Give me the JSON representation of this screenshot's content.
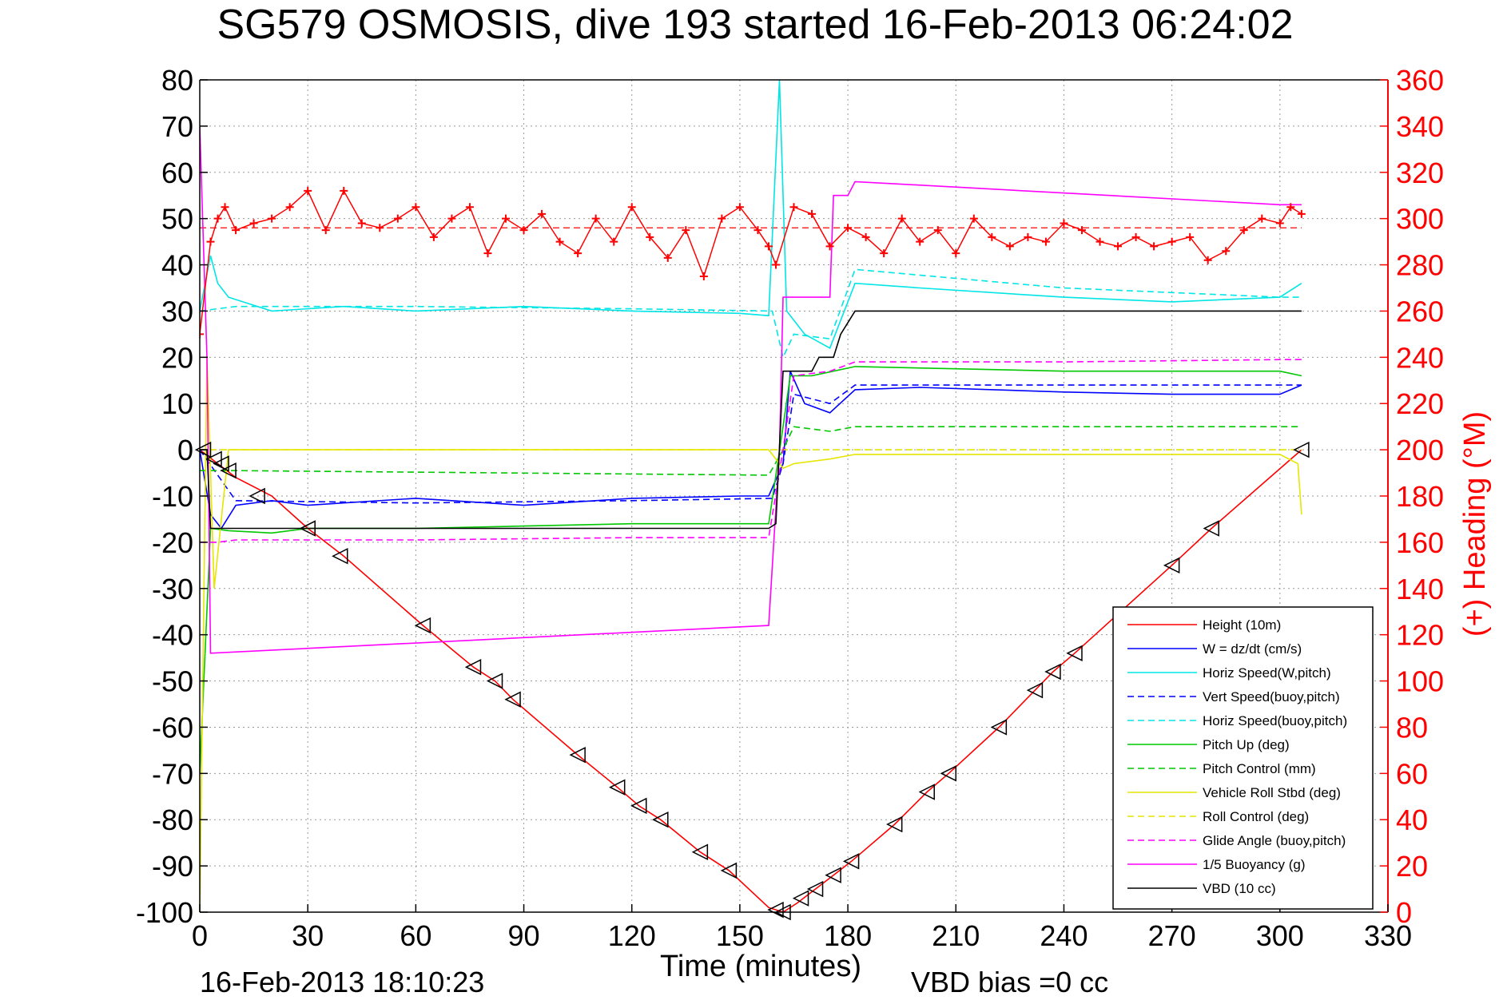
{
  "chart_data": {
    "type": "line",
    "title": "SG579 OSMOSIS, dive 193 started 16-Feb-2013 06:24:02",
    "xlabel": "Time (minutes)",
    "ylabel_right": "(+) Heading (°M)",
    "xlim": [
      0,
      330
    ],
    "ylim": [
      -100,
      80
    ],
    "ylim_right": [
      0,
      360
    ],
    "xticks": [
      0,
      30,
      60,
      90,
      120,
      150,
      180,
      210,
      240,
      270,
      300,
      330
    ],
    "yticks": [
      -100,
      -90,
      -80,
      -70,
      -60,
      -50,
      -40,
      -30,
      -20,
      -10,
      0,
      10,
      20,
      30,
      40,
      50,
      60,
      70,
      80
    ],
    "yticks_right": [
      0,
      20,
      40,
      60,
      80,
      100,
      120,
      140,
      160,
      180,
      200,
      220,
      240,
      260,
      280,
      300,
      320,
      340,
      360
    ],
    "grid": true,
    "legend_position": "bottom-right",
    "footer_left": "16-Feb-2013 18:10:23",
    "footer_right": "VBD bias =0 cc",
    "series": [
      {
        "name": "Height (10m)",
        "color": "#ff0000",
        "style": "solid",
        "x": [
          0,
          5,
          10,
          20,
          30,
          40,
          62,
          76,
          82,
          87,
          105,
          116,
          122,
          128,
          139,
          147,
          158,
          162,
          166,
          171,
          176,
          181,
          193,
          202,
          208,
          222,
          232,
          237,
          243,
          270,
          281,
          306
        ],
        "y": [
          0,
          -3,
          -6,
          -10,
          -17,
          -23,
          -38,
          -47,
          -50,
          -54,
          -66,
          -73,
          -77,
          -80,
          -87,
          -91,
          -99,
          -100,
          -98,
          -95,
          -92,
          -89,
          -81,
          -74,
          -70,
          -60,
          -52,
          -48,
          -44,
          -25,
          -17,
          0
        ]
      },
      {
        "name": "W = dz/dt (cm/s)",
        "color": "#0000ff",
        "style": "solid",
        "x": [
          0,
          3,
          6,
          10,
          20,
          30,
          60,
          90,
          120,
          150,
          158,
          162,
          164,
          168,
          175,
          182,
          200,
          240,
          270,
          300,
          306
        ],
        "y": [
          0,
          -14,
          -17,
          -12,
          -11,
          -12,
          -10.5,
          -12,
          -10.5,
          -10,
          -10,
          -3,
          17,
          10,
          8,
          13,
          13.5,
          12.5,
          12,
          12,
          14
        ]
      },
      {
        "name": "Horiz Speed(W,pitch)",
        "color": "#00e5e5",
        "style": "solid",
        "x": [
          0,
          3,
          5,
          8,
          20,
          40,
          60,
          90,
          120,
          150,
          158,
          161,
          163,
          168,
          175,
          182,
          200,
          240,
          270,
          300,
          306
        ],
        "y": [
          30,
          42,
          36,
          33,
          30,
          31,
          30,
          31,
          30,
          29.5,
          29,
          80,
          30,
          25,
          22,
          36,
          35,
          33,
          32,
          33,
          36
        ]
      },
      {
        "name": "Vert Speed(buoy,pitch)",
        "color": "#0000ff",
        "style": "dashed",
        "x": [
          0,
          10,
          60,
          120,
          159,
          162,
          165,
          175,
          182,
          240,
          300,
          306
        ],
        "y": [
          0,
          -11,
          -11.5,
          -11,
          -10.5,
          -3,
          12,
          10,
          14,
          14,
          14,
          14
        ]
      },
      {
        "name": "Horiz Speed(buoy,pitch)",
        "color": "#00e5e5",
        "style": "dashed",
        "x": [
          0,
          10,
          60,
          120,
          159,
          162,
          165,
          175,
          182,
          240,
          300,
          306
        ],
        "y": [
          30,
          31,
          31,
          30.5,
          30,
          20,
          25,
          24,
          39,
          35,
          33,
          33
        ]
      },
      {
        "name": "Pitch Up (deg)",
        "color": "#00c800",
        "style": "solid",
        "x": [
          0,
          3,
          8,
          20,
          30,
          60,
          90,
          120,
          158,
          162,
          164,
          170,
          176,
          182,
          240,
          300,
          306
        ],
        "y": [
          -70,
          -17,
          -17.5,
          -18,
          -17,
          -17,
          -16.5,
          -16,
          -16,
          5,
          16,
          16,
          17,
          18,
          17,
          17,
          16
        ]
      },
      {
        "name": "Pitch Control (mm)",
        "color": "#00c800",
        "style": "dashed",
        "x": [
          0,
          10,
          158,
          162,
          165,
          175,
          182,
          306
        ],
        "y": [
          -4.5,
          -4.5,
          -5.5,
          0,
          5,
          4,
          5,
          5
        ]
      },
      {
        "name": "Vehicle Roll Stbd (deg)",
        "color": "#e6e600",
        "style": "solid",
        "x": [
          0,
          2,
          4,
          8,
          10,
          15,
          60,
          90,
          120,
          158,
          162,
          165,
          175,
          182,
          240,
          300,
          305,
          306
        ],
        "y": [
          -100,
          20,
          -30,
          0,
          0,
          0,
          0,
          0,
          0,
          0,
          -4,
          -3,
          -2,
          -1,
          -1,
          -1,
          -3,
          -14
        ]
      },
      {
        "name": "Roll Control (deg)",
        "color": "#e6e600",
        "style": "dashed",
        "x": [
          0,
          158,
          162,
          182,
          306
        ],
        "y": [
          0,
          0,
          0,
          0,
          0
        ]
      },
      {
        "name": "Glide Angle (buoy,pitch)",
        "color": "#ff00ff",
        "style": "dashed",
        "x": [
          0,
          5,
          10,
          20,
          60,
          120,
          158,
          162,
          165,
          175,
          182,
          240,
          300,
          306
        ],
        "y": [
          -20,
          -20,
          -19.5,
          -19.5,
          -19.5,
          -19,
          -19,
          0,
          16,
          17,
          19,
          19,
          19.5,
          19.5
        ]
      },
      {
        "name": "1/5 Buoyancy (g)",
        "color": "#ff00ff",
        "style": "solid",
        "x": [
          0,
          2,
          3,
          158,
          161,
          162,
          175,
          176,
          180,
          182,
          300,
          306
        ],
        "y": [
          70,
          20,
          -44,
          -38,
          0,
          33,
          33,
          55,
          55,
          58,
          53,
          53
        ]
      },
      {
        "name": "VBD (10 cc)",
        "color": "#000000",
        "style": "solid",
        "x": [
          0,
          2,
          3,
          158,
          160,
          162,
          170,
          172,
          176,
          178,
          182,
          306
        ],
        "y": [
          0,
          0,
          -17,
          -17,
          -16,
          17,
          17,
          20,
          20,
          25,
          30,
          30
        ]
      },
      {
        "name": "Heading",
        "color": "#ff0000",
        "axis": "right",
        "style": "dashed",
        "marker": "+",
        "x": [
          0,
          3,
          5,
          7,
          10,
          15,
          20,
          25,
          30,
          35,
          40,
          45,
          50,
          55,
          60,
          65,
          70,
          75,
          80,
          85,
          90,
          95,
          100,
          105,
          110,
          115,
          120,
          125,
          130,
          135,
          140,
          145,
          150,
          155,
          158,
          160,
          165,
          170,
          175,
          180,
          185,
          190,
          195,
          200,
          205,
          210,
          215,
          220,
          225,
          230,
          235,
          240,
          245,
          250,
          255,
          260,
          265,
          270,
          275,
          280,
          285,
          290,
          295,
          300,
          303,
          306
        ],
        "y": [
          250,
          290,
          300,
          305,
          295,
          298,
          300,
          305,
          312,
          295,
          312,
          298,
          296,
          300,
          305,
          292,
          300,
          305,
          285,
          300,
          295,
          302,
          290,
          285,
          300,
          290,
          305,
          292,
          283,
          295,
          275,
          300,
          305,
          295,
          288,
          280,
          305,
          302,
          288,
          296,
          292,
          285,
          300,
          290,
          295,
          285,
          300,
          292,
          288,
          292,
          290,
          298,
          295,
          290,
          288,
          292,
          288,
          290,
          292,
          282,
          286,
          295,
          300,
          298,
          305,
          302
        ]
      }
    ],
    "heading_reference": 296,
    "depth_markers": [
      {
        "x": 1,
        "y": 0
      },
      {
        "x": 4,
        "y": -2
      },
      {
        "x": 6,
        "y": -3
      },
      {
        "x": 8,
        "y": -4.5
      },
      {
        "x": 16,
        "y": -10
      },
      {
        "x": 30,
        "y": -17
      },
      {
        "x": 39,
        "y": -23
      },
      {
        "x": 62,
        "y": -38
      },
      {
        "x": 76,
        "y": -47
      },
      {
        "x": 82,
        "y": -50
      },
      {
        "x": 87,
        "y": -54
      },
      {
        "x": 105,
        "y": -66
      },
      {
        "x": 116,
        "y": -73
      },
      {
        "x": 122,
        "y": -77
      },
      {
        "x": 128,
        "y": -80
      },
      {
        "x": 139,
        "y": -87
      },
      {
        "x": 147,
        "y": -91
      },
      {
        "x": 160,
        "y": -99.5
      },
      {
        "x": 162,
        "y": -100
      },
      {
        "x": 167,
        "y": -97
      },
      {
        "x": 171,
        "y": -95
      },
      {
        "x": 176,
        "y": -92
      },
      {
        "x": 181,
        "y": -89
      },
      {
        "x": 193,
        "y": -81
      },
      {
        "x": 202,
        "y": -74
      },
      {
        "x": 208,
        "y": -70
      },
      {
        "x": 222,
        "y": -60
      },
      {
        "x": 232,
        "y": -52
      },
      {
        "x": 237,
        "y": -48
      },
      {
        "x": 243,
        "y": -44
      },
      {
        "x": 270,
        "y": -25
      },
      {
        "x": 281,
        "y": -17
      },
      {
        "x": 306,
        "y": 0
      }
    ]
  }
}
